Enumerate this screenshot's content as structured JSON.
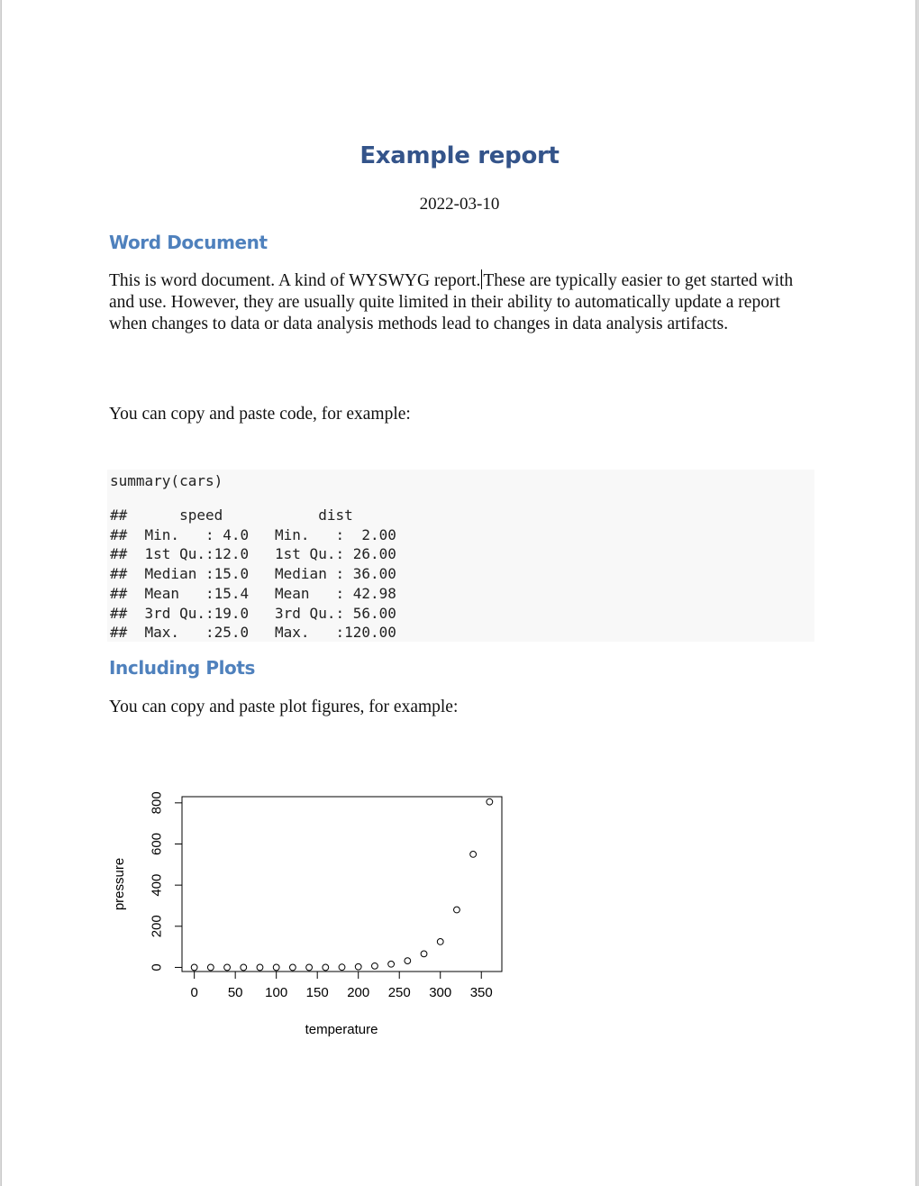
{
  "document": {
    "title": "Example report",
    "date": "2022-03-10",
    "sections": [
      {
        "heading": "Word Document",
        "paragraph_part1": "This is word document. A kind of WYSWYG report.",
        "paragraph_part2": "These are typically easier to get started with and use. However, they are usually quite limited in their ability to automatically update a report when changes to data or data analysis methods lead to changes in data analysis artifacts.",
        "paragraph2": "You can copy and paste code, for example:"
      },
      {
        "heading": "Including Plots",
        "paragraph": "You can copy and paste plot figures, for example:"
      }
    ],
    "code": {
      "command": "summary(cars)",
      "output": "##      speed           dist       \n##  Min.   : 4.0   Min.   :  2.00  \n##  1st Qu.:12.0   1st Qu.: 26.00  \n##  Median :15.0   Median : 36.00  \n##  Mean   :15.4   Mean   : 42.98  \n##  3rd Qu.:19.0   3rd Qu.: 56.00  \n##  Max.   :25.0   Max.   :120.00  "
    }
  },
  "chart_data": {
    "type": "scatter",
    "xlabel": "temperature",
    "ylabel": "pressure",
    "x": [
      0,
      20,
      40,
      60,
      80,
      100,
      120,
      140,
      160,
      180,
      200,
      220,
      240,
      260,
      280,
      300,
      320,
      340,
      360
    ],
    "y": [
      0,
      0,
      0,
      0,
      0,
      0,
      0,
      0,
      0,
      1,
      3,
      7,
      16,
      32,
      66,
      125,
      280,
      550,
      805
    ],
    "xlim": [
      -15,
      375
    ],
    "ylim": [
      -20,
      830
    ],
    "xticks": [
      0,
      50,
      100,
      150,
      200,
      250,
      300,
      350
    ],
    "yticks": [
      0,
      200,
      400,
      600,
      800
    ],
    "marker": "open-circle",
    "grid": false
  }
}
